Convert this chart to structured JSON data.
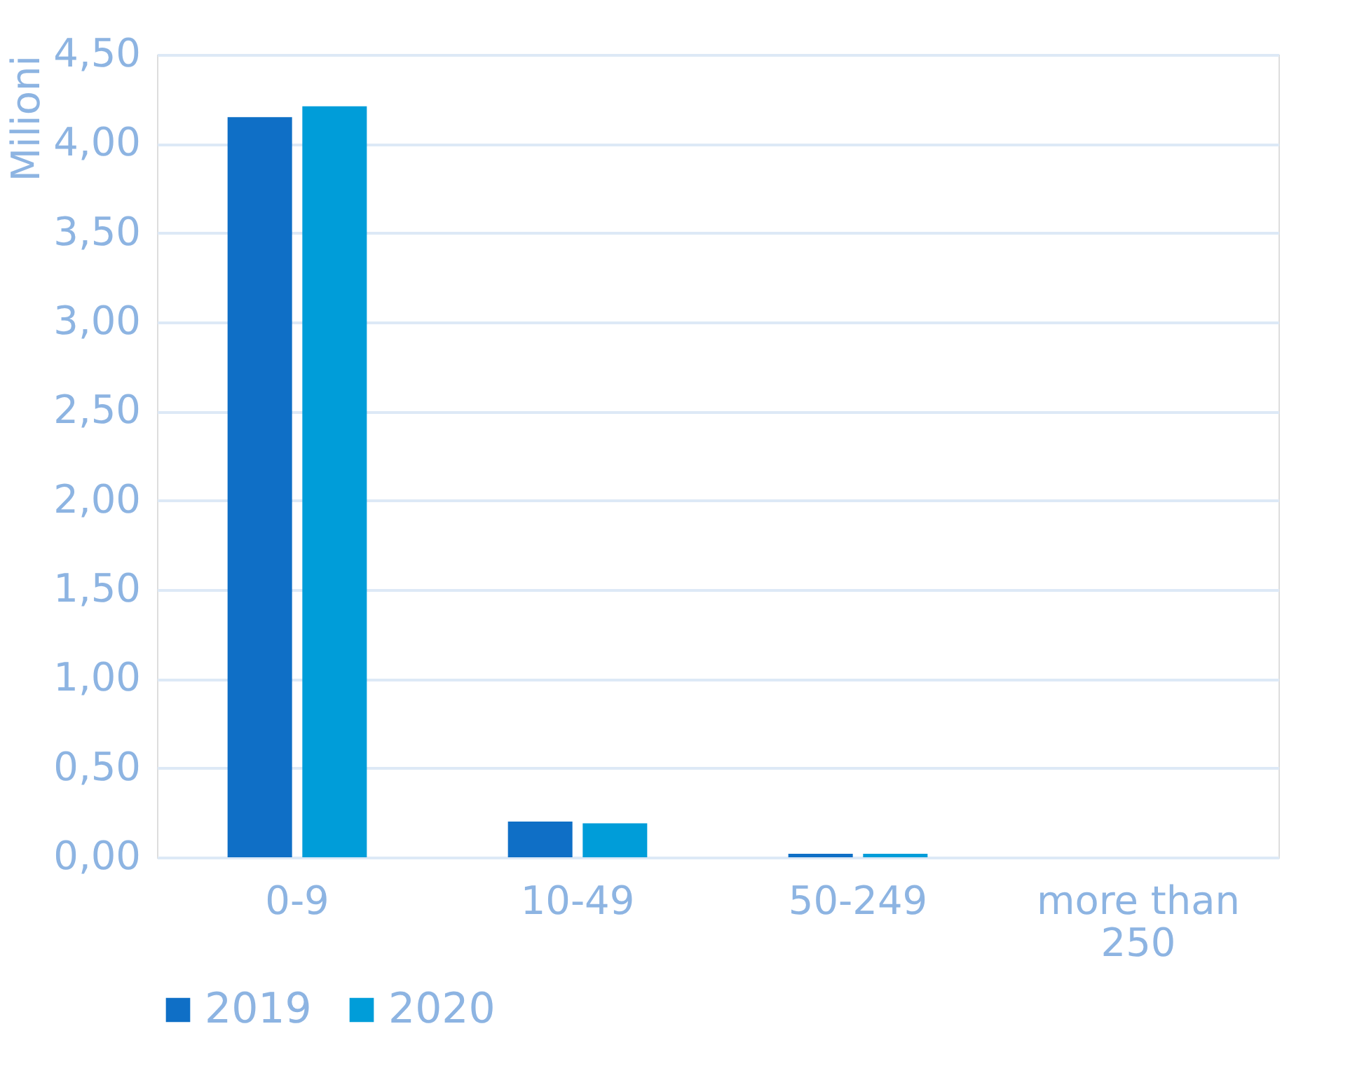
{
  "chart_data": {
    "type": "bar",
    "ylabel": "Milioni",
    "categories": [
      "0-9",
      "10-49",
      "50-249",
      "more than 250"
    ],
    "series": [
      {
        "name": "2019",
        "color": "#0f6fc6",
        "values": [
          4.15,
          0.2,
          0.02,
          0
        ]
      },
      {
        "name": "2020",
        "color": "#009dd9",
        "values": [
          4.21,
          0.19,
          0.02,
          0
        ]
      }
    ],
    "ylim": [
      0,
      4.5
    ],
    "yticks": [
      {
        "value": 0,
        "label": "0,00"
      },
      {
        "value": 0.5,
        "label": "0,50"
      },
      {
        "value": 1,
        "label": "1,00"
      },
      {
        "value": 1.5,
        "label": "1,50"
      },
      {
        "value": 2,
        "label": "2,00"
      },
      {
        "value": 2.5,
        "label": "2,50"
      },
      {
        "value": 3,
        "label": "3,00"
      },
      {
        "value": 3.5,
        "label": "3,50"
      },
      {
        "value": 4,
        "label": "4,00"
      },
      {
        "value": 4.5,
        "label": "4,50"
      }
    ],
    "grid": "y",
    "legend": "bottom"
  }
}
